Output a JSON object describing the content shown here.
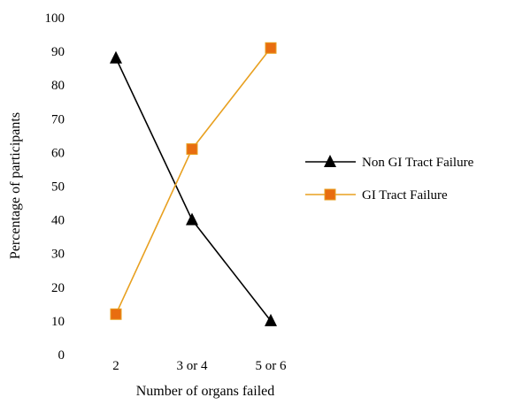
{
  "chart_data": {
    "type": "line",
    "title": "",
    "xlabel": "Number of organs failed",
    "ylabel": "Percentage of participants",
    "categories": [
      "2",
      "3 or 4",
      "5 or 6"
    ],
    "ylim": [
      0,
      100
    ],
    "yticks": [
      "0",
      "10",
      "20",
      "30",
      "40",
      "50",
      "60",
      "70",
      "80",
      "90",
      "100"
    ],
    "grid": false,
    "legend_position": "right",
    "series": [
      {
        "name": "Non GI Tract Failure",
        "values": [
          88,
          40,
          10
        ],
        "color": "#000000",
        "marker": "triangle"
      },
      {
        "name": "GI Tract Failure",
        "values": [
          12,
          61,
          91
        ],
        "color": "#E8A020",
        "marker_color": "#E86D10",
        "marker": "square"
      }
    ]
  }
}
